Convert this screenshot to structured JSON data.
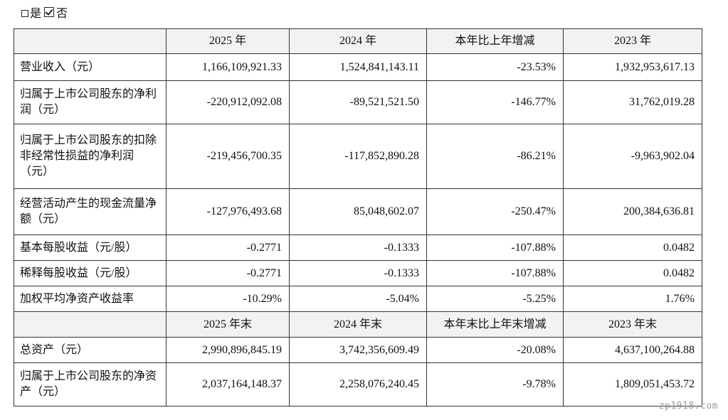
{
  "checkbox": {
    "yes_label": "是",
    "no_label": "否",
    "selected": "否"
  },
  "header1": [
    "2025 年",
    "2024 年",
    "本年比上年增减",
    "2023 年"
  ],
  "rows1": [
    {
      "label": "营业收入（元）",
      "values": [
        "1,166,109,921.33",
        "1,524,841,143.11",
        "-23.53%",
        "1,932,953,617.13"
      ]
    },
    {
      "label": "归属于上市公司股东的净利润（元）",
      "values": [
        "-220,912,092.08",
        "-89,521,521.50",
        "-146.77%",
        "31,762,019.28"
      ]
    },
    {
      "label": "归属于上市公司股东的扣除非经常性损益的净利润（元）",
      "values": [
        "-219,456,700.35",
        "-117,852,890.28",
        "-86.21%",
        "-9,963,902.04"
      ]
    },
    {
      "label": "经营活动产生的现金流量净额（元）",
      "values": [
        "-127,976,493.68",
        "85,048,602.07",
        "-250.47%",
        "200,384,636.81"
      ]
    },
    {
      "label": "基本每股收益（元/股）",
      "values": [
        "-0.2771",
        "-0.1333",
        "-107.88%",
        "0.0482"
      ]
    },
    {
      "label": "稀释每股收益（元/股）",
      "values": [
        "-0.2771",
        "-0.1333",
        "-107.88%",
        "0.0482"
      ]
    },
    {
      "label": "加权平均净资产收益率",
      "values": [
        "-10.29%",
        "-5.04%",
        "-5.25%",
        "1.76%"
      ]
    }
  ],
  "header2": [
    "2025 年末",
    "2024 年末",
    "本年末比上年末增减",
    "2023 年末"
  ],
  "rows2": [
    {
      "label": "总资产（元）",
      "values": [
        "2,990,896,845.19",
        "3,742,356,609.49",
        "-20.08%",
        "4,637,100,264.88"
      ]
    },
    {
      "label": "归属于上市公司股东的净资产（元）",
      "values": [
        "2,037,164,148.37",
        "2,258,076,240.45",
        "-9.78%",
        "1,809,051,453.72"
      ]
    }
  ],
  "watermark": "zp1918.com"
}
